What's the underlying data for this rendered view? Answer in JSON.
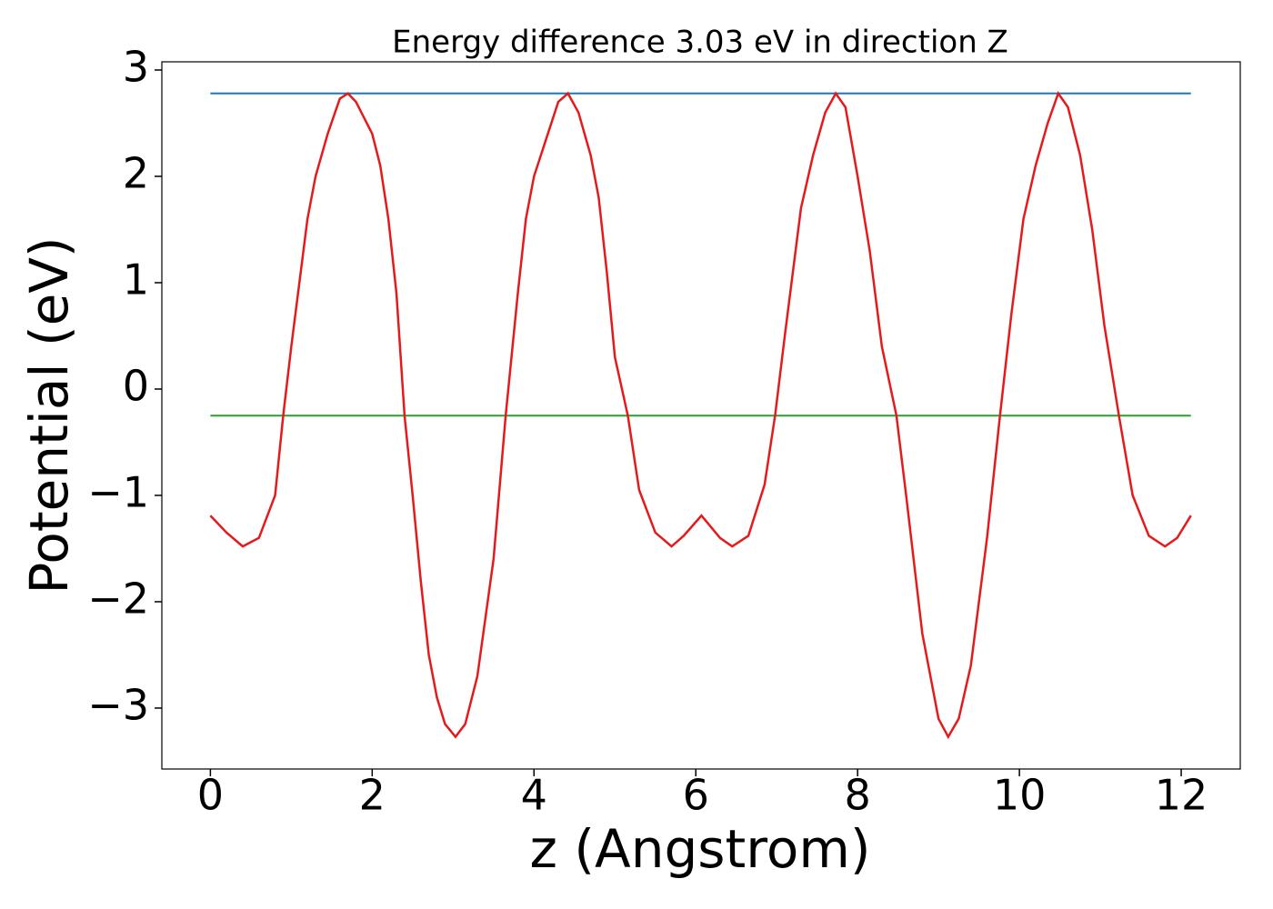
{
  "chart_data": {
    "type": "line",
    "title": "Energy difference 3.03 eV in direction Z",
    "xlabel": "z (Angstrom)",
    "ylabel": "Potential (eV)",
    "xlim": [
      -0.6,
      12.73
    ],
    "ylim": [
      -3.573,
      3.077
    ],
    "xticks": [
      0,
      2,
      4,
      6,
      8,
      10,
      12
    ],
    "yticks": [
      {
        "value": -3,
        "label": "−3"
      },
      {
        "value": -2,
        "label": "−2"
      },
      {
        "value": -1,
        "label": "−1"
      },
      0,
      1,
      2,
      3
    ],
    "series": [
      {
        "color": "#1f77b4",
        "x": [
          0,
          12.12
        ],
        "values": [
          2.78,
          2.78
        ]
      },
      {
        "color": "#2ca02c",
        "x": [
          0,
          12.12
        ],
        "values": [
          -0.25,
          -0.25
        ]
      },
      {
        "color": "#e41a1c",
        "x": [
          0,
          0.2,
          0.4,
          0.6,
          0.8,
          0.9,
          1.0,
          1.2,
          1.3,
          1.45,
          1.6,
          1.7,
          1.8,
          2.0,
          2.1,
          2.2,
          2.3,
          2.4,
          2.5,
          2.6,
          2.7,
          2.8,
          2.9,
          3.03,
          3.15,
          3.3,
          3.5,
          3.65,
          3.8,
          3.9,
          4.0,
          4.15,
          4.3,
          4.42,
          4.55,
          4.7,
          4.8,
          4.9,
          5.0,
          5.16,
          5.3,
          5.5,
          5.7,
          5.85,
          6.07,
          6.3,
          6.45,
          6.65,
          6.85,
          6.98,
          7.1,
          7.3,
          7.45,
          7.6,
          7.73,
          7.85,
          8.0,
          8.15,
          8.3,
          8.48,
          8.6,
          8.8,
          9.0,
          9.12,
          9.25,
          9.4,
          9.6,
          9.76,
          9.9,
          10.05,
          10.2,
          10.35,
          10.48,
          10.6,
          10.75,
          10.9,
          11.05,
          11.23,
          11.4,
          11.6,
          11.8,
          11.95,
          12.12
        ],
        "values": [
          -1.19,
          -1.35,
          -1.48,
          -1.4,
          -1.0,
          -0.25,
          0.4,
          1.6,
          2.0,
          2.4,
          2.73,
          2.78,
          2.7,
          2.4,
          2.1,
          1.6,
          0.9,
          -0.25,
          -1.0,
          -1.8,
          -2.5,
          -2.9,
          -3.15,
          -3.27,
          -3.15,
          -2.7,
          -1.6,
          -0.25,
          0.9,
          1.6,
          2.0,
          2.35,
          2.7,
          2.78,
          2.6,
          2.2,
          1.8,
          1.1,
          0.3,
          -0.25,
          -0.95,
          -1.35,
          -1.48,
          -1.38,
          -1.19,
          -1.4,
          -1.48,
          -1.38,
          -0.9,
          -0.25,
          0.5,
          1.7,
          2.2,
          2.6,
          2.78,
          2.65,
          2.0,
          1.3,
          0.4,
          -0.25,
          -1.0,
          -2.3,
          -3.1,
          -3.27,
          -3.1,
          -2.6,
          -1.4,
          -0.25,
          0.7,
          1.6,
          2.1,
          2.5,
          2.78,
          2.65,
          2.2,
          1.5,
          0.6,
          -0.25,
          -1.0,
          -1.38,
          -1.48,
          -1.4,
          -1.19
        ]
      }
    ]
  }
}
